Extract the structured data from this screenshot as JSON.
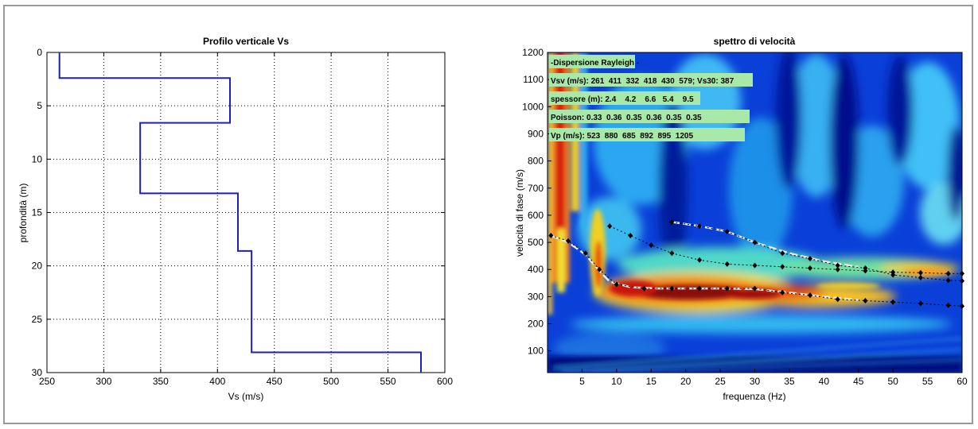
{
  "chart_data": [
    {
      "type": "line",
      "title": "Profilo verticale Vs",
      "xlabel": "Vs (m/s)",
      "ylabel": "profondità (m)",
      "xlim": [
        250,
        600
      ],
      "ylim": [
        0,
        30
      ],
      "y_reversed": true,
      "grid": true,
      "xticks": [
        "250",
        "300",
        "350",
        "400",
        "450",
        "500",
        "550",
        "600"
      ],
      "yticks": [
        "0",
        "5",
        "10",
        "15",
        "20",
        "25",
        "30"
      ],
      "line_color": "#1f1fbf",
      "series": [
        {
          "x": [
            261,
            261,
            411,
            411,
            332,
            332,
            418,
            418,
            430,
            430,
            579,
            579
          ],
          "y": [
            0,
            2.4,
            2.4,
            6.6,
            6.6,
            13.2,
            13.2,
            18.6,
            18.6,
            28.1,
            28.1,
            30
          ]
        }
      ]
    },
    {
      "type": "heatmap",
      "title": "spettro di velocità",
      "xlabel": "frequenza (Hz)",
      "ylabel": "velocità di fase (m/s)",
      "xlim": [
        0,
        60
      ],
      "ylim": [
        20,
        1200
      ],
      "xticks": [
        "5",
        "10",
        "15",
        "20",
        "25",
        "30",
        "35",
        "40",
        "45",
        "50",
        "55",
        "60"
      ],
      "yticks": [
        "100",
        "200",
        "300",
        "400",
        "500",
        "600",
        "700",
        "800",
        "900",
        "1000",
        "1100",
        "1200"
      ],
      "annotations": [
        "-Dispersione Rayleigh -",
        "Vsv (m/s): 261  411  332  418  430  579; Vs30: 387",
        "spessore (m): 2.4    4.2    6.6   5.4    9.5",
        "Poisson: 0.33  0.36  0.35  0.36  0.35  0.35",
        "Vp (m/s): 523  880  685  892  895  1205"
      ],
      "picked_points": [
        {
          "x": [
            0.5,
            3,
            5.5,
            7.5,
            10,
            14,
            18,
            22,
            26,
            30,
            34,
            38,
            42,
            46,
            50,
            54,
            58,
            60
          ],
          "y": [
            525,
            505,
            460,
            400,
            345,
            330,
            330,
            330,
            330,
            330,
            315,
            305,
            290,
            285,
            280,
            275,
            268,
            265
          ]
        },
        {
          "x": [
            9,
            12,
            15,
            18,
            22,
            26,
            30,
            34,
            38,
            42,
            46,
            50,
            54,
            58,
            60
          ],
          "y": [
            560,
            525,
            490,
            460,
            435,
            420,
            415,
            410,
            405,
            400,
            395,
            390,
            388,
            385,
            385
          ]
        },
        {
          "x": [
            18,
            22,
            26,
            30,
            34,
            38,
            42,
            46,
            50,
            54,
            58,
            60
          ],
          "y": [
            575,
            560,
            540,
            500,
            460,
            440,
            415,
            405,
            380,
            370,
            360,
            358
          ]
        }
      ],
      "model_curves": [
        {
          "x": [
            0.5,
            3,
            5.5,
            7.5,
            9,
            12,
            16,
            20,
            25,
            30,
            35,
            40,
            45
          ],
          "y": [
            525,
            500,
            455,
            395,
            355,
            335,
            330,
            330,
            330,
            328,
            315,
            300,
            288
          ]
        },
        {
          "x": [
            18,
            22,
            26,
            30,
            35,
            40,
            45
          ],
          "y": [
            575,
            560,
            540,
            500,
            460,
            430,
            410
          ]
        }
      ]
    }
  ]
}
